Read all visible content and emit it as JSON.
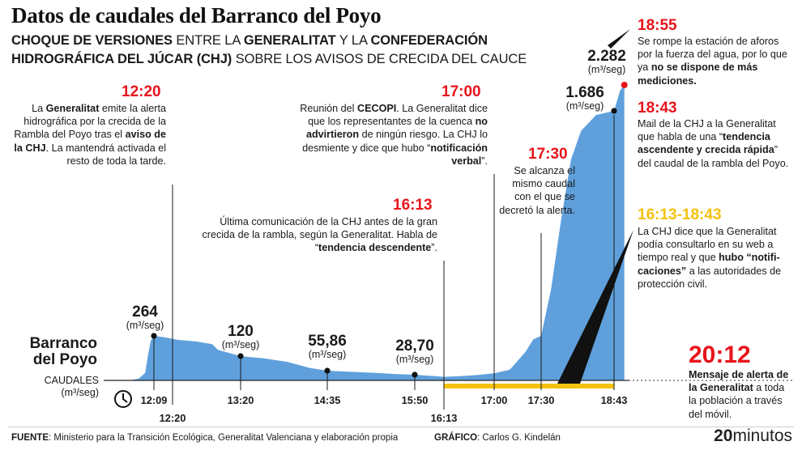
{
  "title": "Datos de caudales del Barranco del Poyo",
  "subtitle": {
    "line1": [
      {
        "t": "CHOQUE DE VERSIONES",
        "b": true
      },
      {
        "t": " ENTRE LA ",
        "b": false
      },
      {
        "t": "GENERALITAT",
        "b": true
      },
      {
        "t": " Y LA ",
        "b": false
      },
      {
        "t": "CONFEDERACIÓN",
        "b": true
      }
    ],
    "line2": [
      {
        "t": "HIDROGRÁFICA DEL JÚCAR (CHJ)",
        "b": true
      },
      {
        "t": " SOBRE LOS AVISOS DE CRECIDA DEL CAUCE",
        "b": false
      }
    ]
  },
  "colors": {
    "area": "#5fa0dc",
    "red": "#e8141b",
    "yellow": "#f4c20d",
    "guide": "#1a1a1a"
  },
  "chart_data": {
    "type": "area",
    "title": "Datos de caudales del Barranco del Poyo",
    "series_label": "Barranco del Poyo",
    "ylabel": "CAUDALES (m³/seg)",
    "x_unit": "hora",
    "x_range": [
      "11:30",
      "19:00"
    ],
    "y_range": [
      0,
      2400
    ],
    "grid": false,
    "x_ticks": [
      "12:09",
      "12:20",
      "13:20",
      "14:35",
      "15:50",
      "16:13",
      "17:00",
      "17:30",
      "18:43"
    ],
    "points": [
      {
        "x": "11:30",
        "y": 0
      },
      {
        "x": "11:45",
        "y": 10
      },
      {
        "x": "11:55",
        "y": 40
      },
      {
        "x": "12:00",
        "y": 140
      },
      {
        "x": "12:04",
        "y": 230
      },
      {
        "x": "12:09",
        "y": 264
      },
      {
        "x": "12:15",
        "y": 255
      },
      {
        "x": "12:25",
        "y": 235
      },
      {
        "x": "12:40",
        "y": 225
      },
      {
        "x": "12:55",
        "y": 205
      },
      {
        "x": "13:00",
        "y": 165
      },
      {
        "x": "13:20",
        "y": 120
      },
      {
        "x": "13:40",
        "y": 110
      },
      {
        "x": "14:00",
        "y": 95
      },
      {
        "x": "14:20",
        "y": 68
      },
      {
        "x": "14:35",
        "y": 55.86
      },
      {
        "x": "14:55",
        "y": 48
      },
      {
        "x": "15:15",
        "y": 42
      },
      {
        "x": "15:35",
        "y": 33
      },
      {
        "x": "15:50",
        "y": 28.7
      },
      {
        "x": "16:05",
        "y": 22
      },
      {
        "x": "16:13",
        "y": 18
      },
      {
        "x": "16:30",
        "y": 22
      },
      {
        "x": "16:45",
        "y": 28
      },
      {
        "x": "17:00",
        "y": 38
      },
      {
        "x": "17:10",
        "y": 60
      },
      {
        "x": "17:20",
        "y": 150
      },
      {
        "x": "17:25",
        "y": 240
      },
      {
        "x": "17:30",
        "y": 264
      },
      {
        "x": "17:40",
        "y": 560
      },
      {
        "x": "17:50",
        "y": 1000
      },
      {
        "x": "18:00",
        "y": 1380
      },
      {
        "x": "18:10",
        "y": 1560
      },
      {
        "x": "18:25",
        "y": 1660
      },
      {
        "x": "18:43",
        "y": 1686
      },
      {
        "x": "18:50",
        "y": 2150
      },
      {
        "x": "18:55",
        "y": 2282
      }
    ],
    "labeled_values": [
      {
        "x": "12:09",
        "value": "264",
        "unit": "(m³/seg)"
      },
      {
        "x": "13:20",
        "value": "120",
        "unit": "(m³/seg)"
      },
      {
        "x": "14:35",
        "value": "55,86",
        "unit": "(m³/seg)"
      },
      {
        "x": "15:50",
        "value": "28,70",
        "unit": "(m³/seg)"
      },
      {
        "x": "18:43",
        "value": "1.686",
        "unit": "(m³/seg)"
      },
      {
        "x": "18:55",
        "value": "2.282",
        "unit": "(m³/seg)"
      }
    ],
    "highlight_band": {
      "from": "16:13",
      "to": "18:43",
      "color": "#f4c20d"
    },
    "annotations": [
      {
        "time": "12:20",
        "color": "red",
        "text_html": "La <b>Generalitat</b> emite la alerta hidrográfica por la crecida de la Rambla del Poyo tras el <b>aviso de la CHJ</b>. La manten­drá activada el resto de toda la tarde."
      },
      {
        "time": "17:00",
        "color": "red",
        "text_html": "Reunión del <b>CECOPI</b>. La Generalitat dice que los representantes de la cuenca <b>no advirtieron</b> de ningún riesgo. La CHJ lo desmiente y dice que hubo “<b>notificación verbal</b>”."
      },
      {
        "time": "16:13",
        "color": "red",
        "text_html": "Última comunicación de la CHJ antes de la gran crecida de la rambla, según la Generalitat. Habla de “<b>tendencia descendente</b>”."
      },
      {
        "time": "17:30",
        "color": "red",
        "text_html": "Se alcanza el mismo caudal con el que se decretó la alerta."
      },
      {
        "time": "18:55",
        "color": "red",
        "text_html": "Se rompe la estación de aforos por la fuerza del agua, por lo que ya <b>no se dispone de más mediciones.</b>"
      },
      {
        "time": "18:43",
        "color": "red",
        "text_html": "Mail de la CHJ a la Generalitat que habla de una “<b>tendencia ascendente y crecida rápida</b>” del caudal de la rambla del Poyo."
      },
      {
        "time": "16:13-18:43",
        "color": "yellow",
        "text_html": "La CHJ dice que la Generalitat podía consultarlo en su web a tiempo real y que <b>hubo “notifi­caciones”</b> a las autoridades de protección civil."
      },
      {
        "time": "20:12",
        "color": "red",
        "text_html": "<b>Mensaje de alerta de la Generalitat</b> a toda la población a través del móvil."
      }
    ]
  },
  "river_name": "Barranco del Poyo",
  "axis_caption": "CAUDALES (m³/seg)",
  "footer": {
    "source_label": "FUENTE",
    "source_text": ": Ministerio para la Transición Ecológica, Generalitat Valenciana y elaboración propia",
    "graphic_label": "GRÁFICO",
    "graphic_text": ": Carlos G. Kindelán",
    "brand_num": "20",
    "brand_text": "minutos"
  },
  "icons": {
    "clock": "clock-icon"
  }
}
